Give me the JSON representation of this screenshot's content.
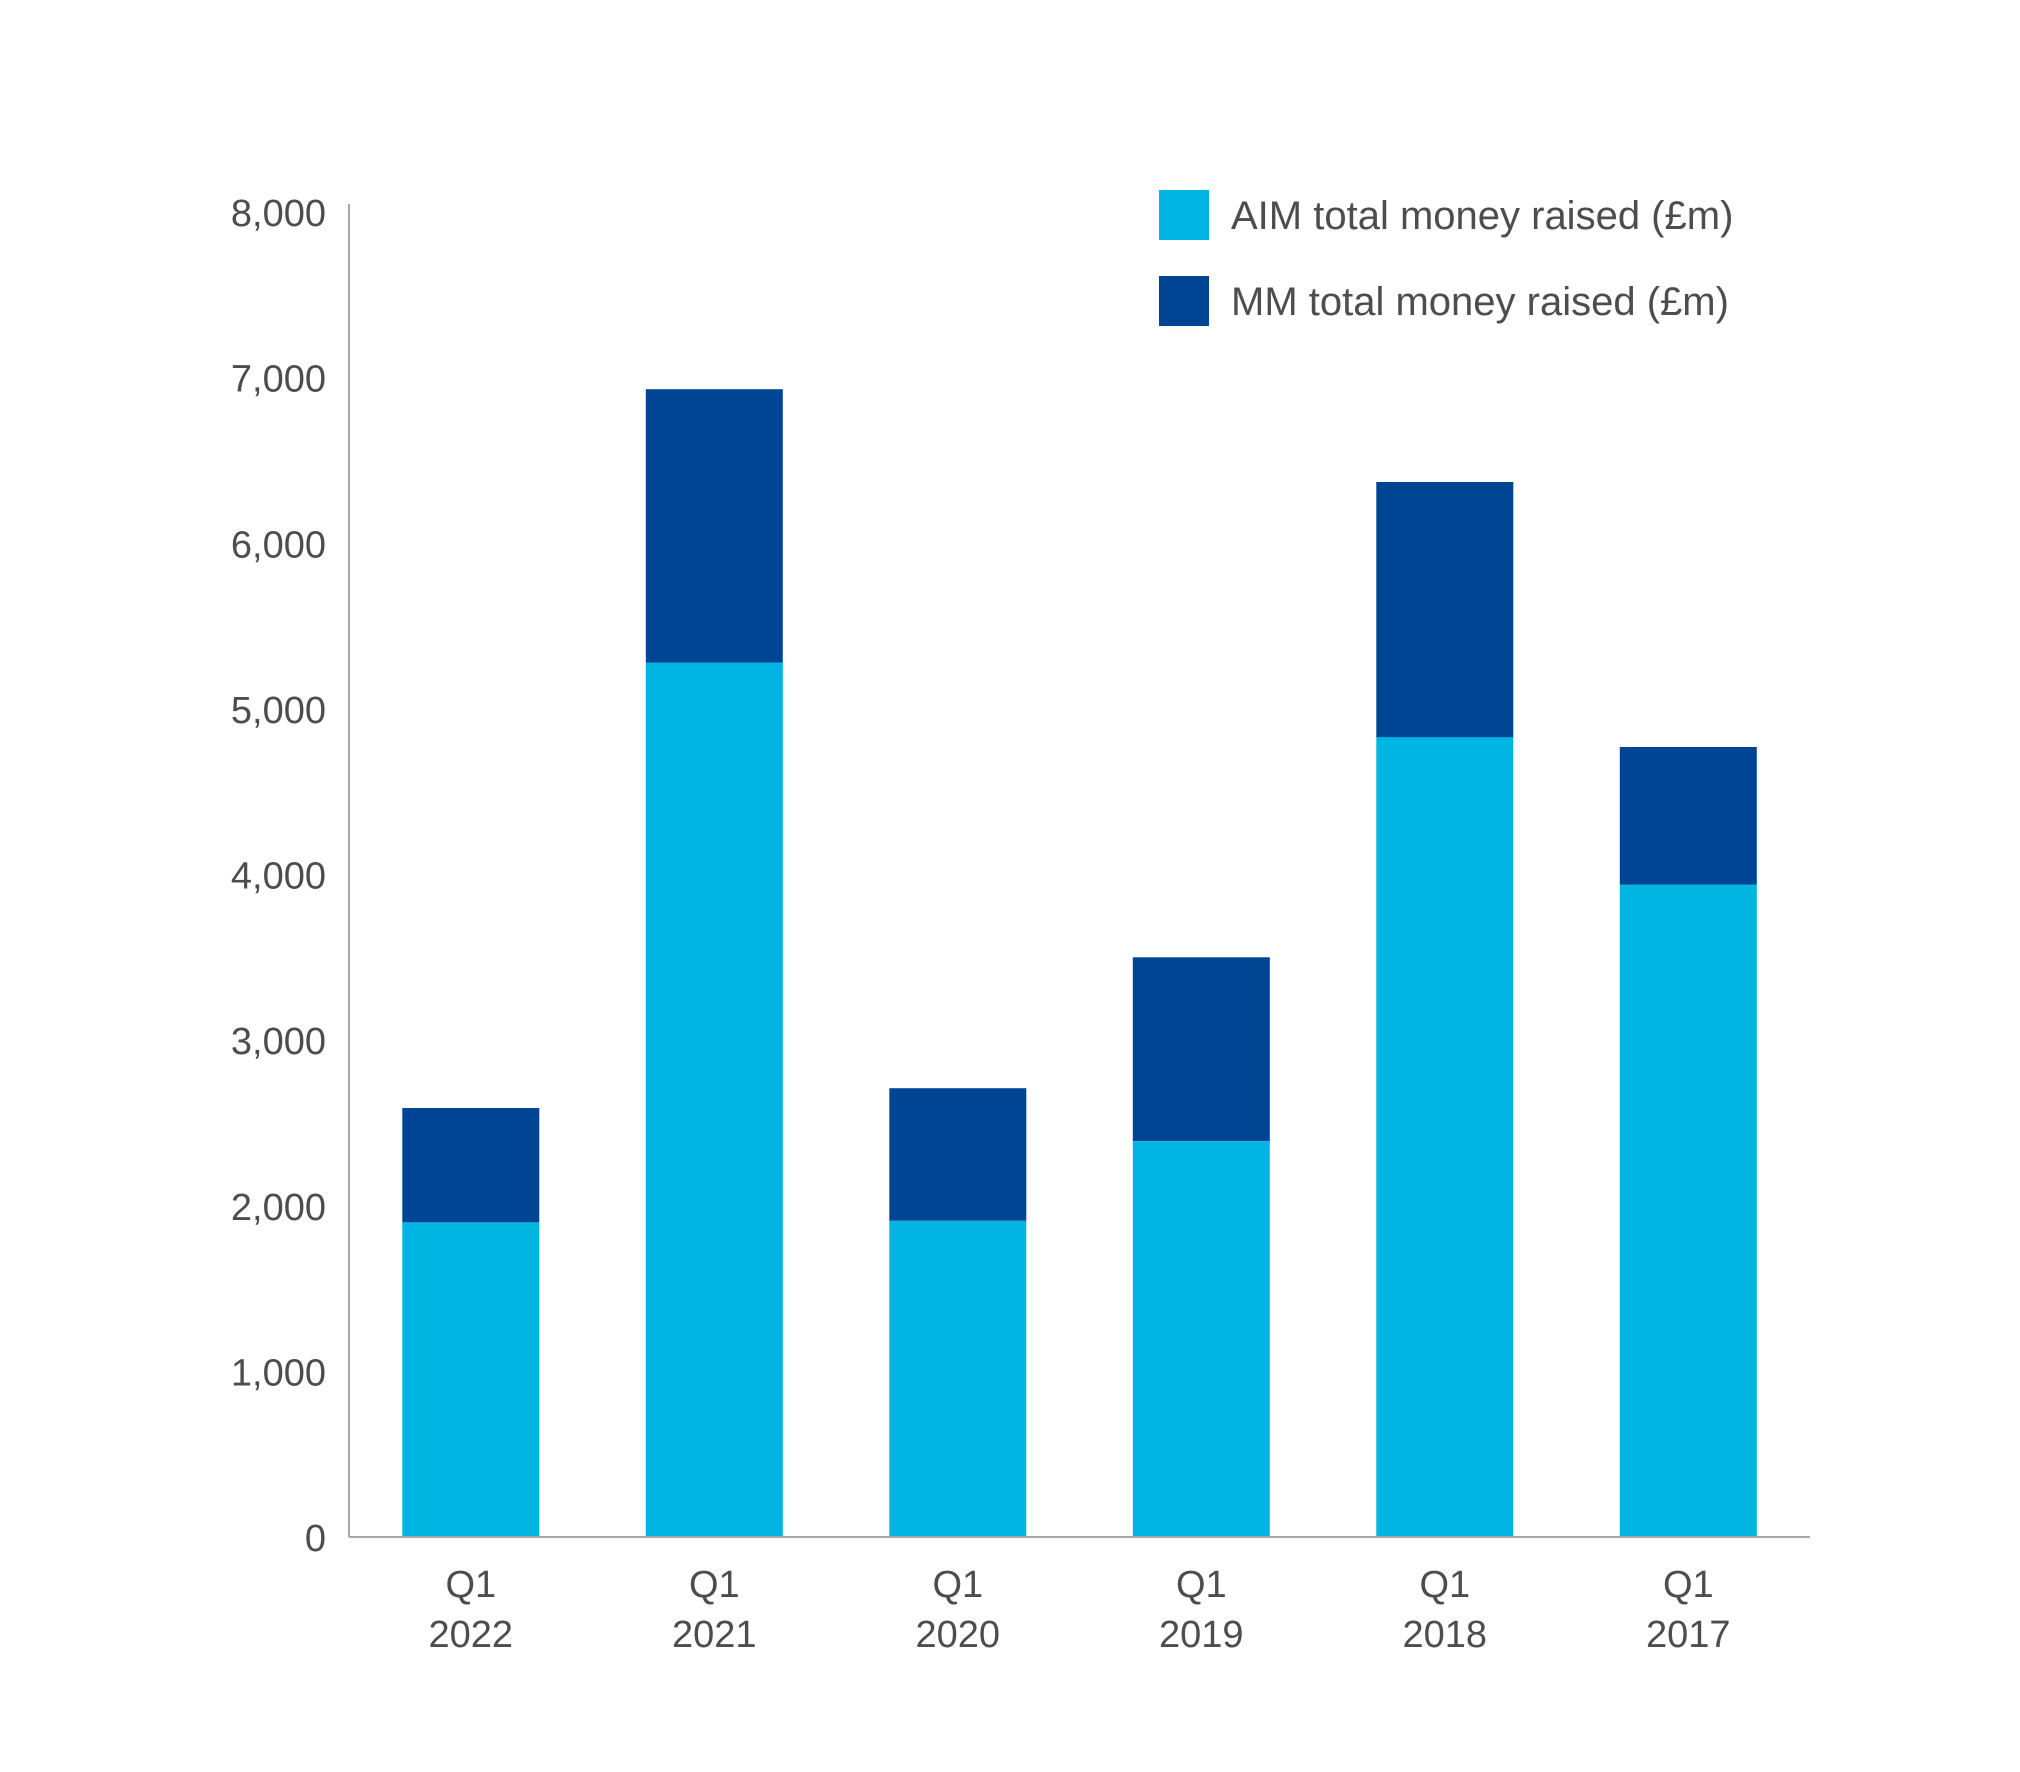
{
  "colors": {
    "aim": "#00b5e2",
    "mm": "#004494",
    "axis": "#a6a6a6",
    "text": "#4d4d4f"
  },
  "chart_data": {
    "type": "bar",
    "stacked": true,
    "title": "",
    "xlabel": "",
    "ylabel": "",
    "categories": [
      [
        "Q1",
        "2022"
      ],
      [
        "Q1",
        "2021"
      ],
      [
        "Q1",
        "2020"
      ],
      [
        "Q1",
        "2019"
      ],
      [
        "Q1",
        "2018"
      ],
      [
        "Q1",
        "2017"
      ]
    ],
    "series": [
      {
        "name": "AIM total money raised (£m)",
        "color": "#00b5e2",
        "values": [
          1900,
          5280,
          1910,
          2390,
          4830,
          3940
        ]
      },
      {
        "name": "MM total money raised (£m)",
        "color": "#004494",
        "values": [
          690,
          1650,
          800,
          1110,
          1540,
          830
        ]
      }
    ],
    "ylim": [
      0,
      8000
    ],
    "yticks": [
      0,
      1000,
      2000,
      3000,
      4000,
      5000,
      6000,
      7000,
      8000
    ],
    "ytick_labels": [
      "0",
      "1,000",
      "2,000",
      "3,000",
      "4,000",
      "5,000",
      "6,000",
      "7,000",
      "8,000"
    ],
    "grid": false,
    "legend_position": "top-right"
  }
}
